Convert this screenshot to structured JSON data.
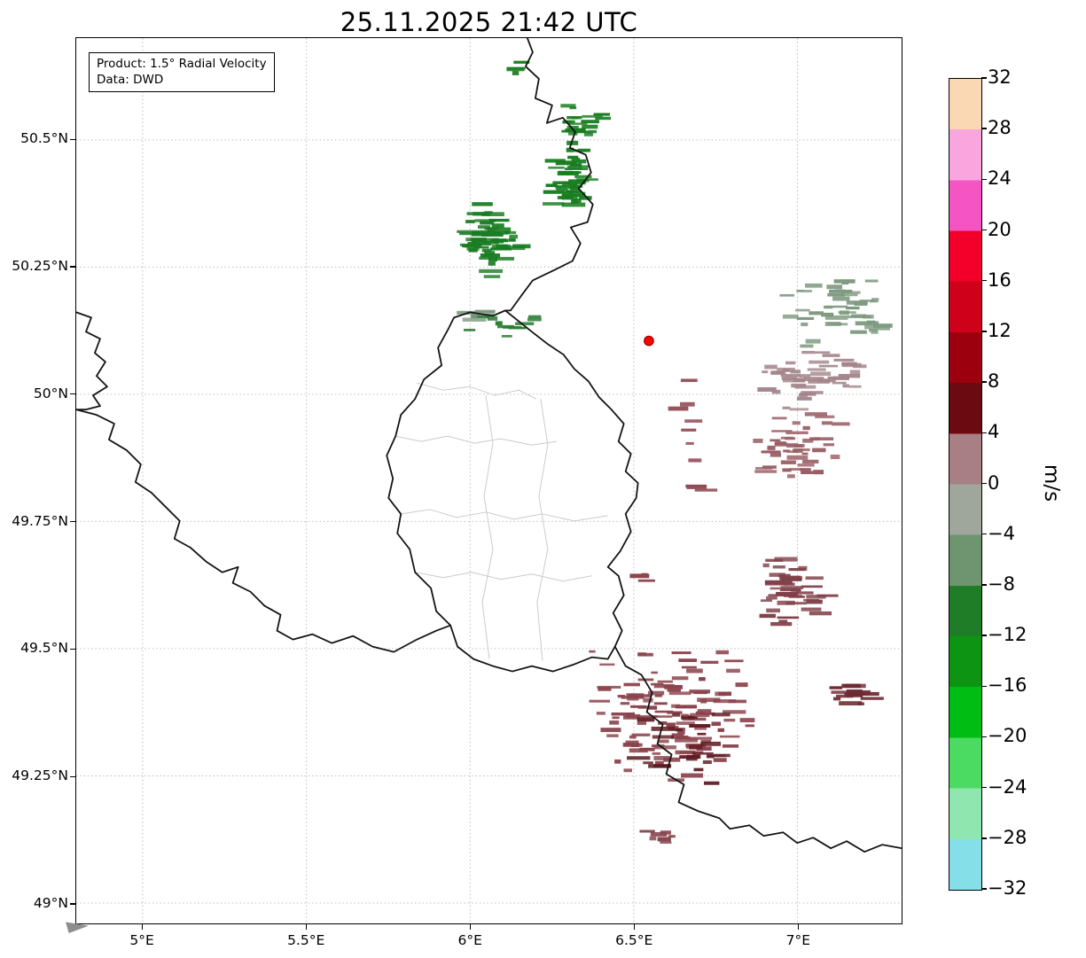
{
  "title": "25.11.2025 21:42 UTC",
  "info_box": {
    "product": "Product: 1.5° Radial Velocity",
    "source": "Data: DWD"
  },
  "chart_data": {
    "type": "heatmap",
    "title": "25.11.2025 21:42 UTC",
    "product": "1.5° Radial Velocity",
    "data_source": "DWD",
    "units": "m/s",
    "x_axis": {
      "tick_values": [
        5,
        5.5,
        6,
        6.5,
        7
      ],
      "tick_labels": [
        "5°E",
        "5.5°E",
        "6°E",
        "6.5°E",
        "7°E"
      ],
      "lim": [
        4.797,
        7.318
      ]
    },
    "y_axis": {
      "tick_values": [
        50.5,
        50.25,
        50,
        49.75,
        49.5,
        49.25,
        49
      ],
      "tick_labels": [
        "50.5°N",
        "50.25°N",
        "50°N",
        "49.75°N",
        "49.5°N",
        "49.25°N",
        "49°N"
      ],
      "lim": [
        48.96,
        50.7
      ]
    },
    "colorbar": {
      "label": "m/s",
      "range": [
        -32,
        32
      ],
      "tick_step": 4,
      "tick_labels": [
        "32",
        "28",
        "24",
        "20",
        "16",
        "12",
        "8",
        "4",
        "0",
        "−4",
        "−8",
        "−12",
        "−16",
        "−20",
        "−24",
        "−28",
        "−32"
      ],
      "colors_top_to_bottom": [
        "#fbd8b4",
        "#f9a6df",
        "#f455c2",
        "#f2002a",
        "#cf0019",
        "#9c000f",
        "#6c0a12",
        "#a87f84",
        "#9fa79d",
        "#6f9470",
        "#1e7d26",
        "#0c9412",
        "#00bd14",
        "#4cdb62",
        "#8fe6ae",
        "#85dfe8"
      ]
    },
    "radar_site": {
      "lon": 6.546,
      "lat": 50.105,
      "marker_color": "#ff0000",
      "marker_edge": "#990000"
    },
    "echo_clusters": [
      {
        "name": "north-green-upper",
        "lon": 6.343,
        "lat": 50.535,
        "sx": 0.07,
        "sy": 0.045,
        "count": 22,
        "color": "#187d20"
      },
      {
        "name": "north-green-main",
        "lon": 6.305,
        "lat": 50.427,
        "sx": 0.081,
        "sy": 0.063,
        "count": 45,
        "color": "#187d20"
      },
      {
        "name": "northwest-green",
        "lon": 6.062,
        "lat": 50.309,
        "sx": 0.108,
        "sy": 0.08,
        "count": 55,
        "color": "#1a7c22"
      },
      {
        "name": "mid-green-row",
        "lon": 6.095,
        "lat": 50.138,
        "sx": 0.157,
        "sy": 0.028,
        "count": 12,
        "color": "#2b7d33"
      },
      {
        "name": "mid-graygreen-row",
        "lon": 6.027,
        "lat": 50.152,
        "sx": 0.081,
        "sy": 0.017,
        "count": 6,
        "color": "#7f9a81"
      },
      {
        "name": "top-edge-green",
        "lon": 6.151,
        "lat": 50.643,
        "sx": 0.024,
        "sy": 0.016,
        "count": 4,
        "color": "#187d20"
      },
      {
        "name": "east-graygreen",
        "lon": 7.122,
        "lat": 50.162,
        "sx": 0.168,
        "sy": 0.073,
        "count": 48,
        "color": "#7e9a80"
      },
      {
        "name": "east-rosegray",
        "lon": 7.054,
        "lat": 50.027,
        "sx": 0.168,
        "sy": 0.07,
        "count": 45,
        "color": "#a3858a"
      },
      {
        "name": "east-maroon-light",
        "lon": 7.008,
        "lat": 49.896,
        "sx": 0.149,
        "sy": 0.078,
        "count": 45,
        "color": "#9a5f66"
      },
      {
        "name": "east-maroon",
        "lon": 6.986,
        "lat": 49.613,
        "sx": 0.124,
        "sy": 0.084,
        "count": 48,
        "color": "#81414a"
      },
      {
        "name": "south-maroon-main",
        "lon": 6.627,
        "lat": 49.374,
        "sx": 0.257,
        "sy": 0.148,
        "count": 120,
        "color": "#8b434c"
      },
      {
        "name": "south-darkred",
        "lon": 6.654,
        "lat": 49.305,
        "sx": 0.176,
        "sy": 0.078,
        "count": 26,
        "color": "#5f1b22"
      },
      {
        "name": "southeast-small",
        "lon": 7.176,
        "lat": 49.407,
        "sx": 0.076,
        "sy": 0.031,
        "count": 16,
        "color": "#6e2a32"
      },
      {
        "name": "bottom-bar",
        "lon": 6.595,
        "lat": 49.131,
        "sx": 0.054,
        "sy": 0.014,
        "count": 7,
        "color": "#84434b"
      },
      {
        "name": "scatter-east-of-site",
        "lon": 6.67,
        "lat": 49.957,
        "sx": 0.054,
        "sy": 0.104,
        "count": 7,
        "color": "#8b434c"
      },
      {
        "name": "scatter-mid-1",
        "lon": 6.697,
        "lat": 49.821,
        "sx": 0.033,
        "sy": 0.021,
        "count": 3,
        "color": "#8b434c"
      },
      {
        "name": "scatter-mid-2",
        "lon": 6.532,
        "lat": 49.64,
        "sx": 0.033,
        "sy": 0.014,
        "count": 3,
        "color": "#8b434c"
      }
    ]
  }
}
